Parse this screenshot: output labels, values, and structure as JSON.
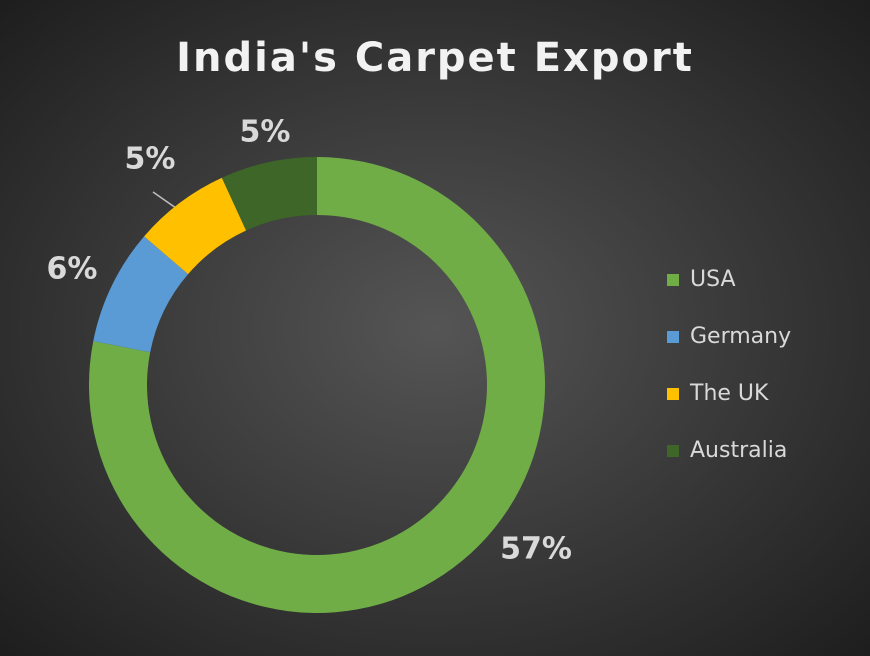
{
  "chart_data": {
    "type": "donut",
    "title": "India's Carpet Export",
    "categories": [
      "USA",
      "Germany",
      "The UK",
      "Australia"
    ],
    "values": [
      57,
      6,
      5,
      5
    ],
    "value_labels": [
      "57%",
      "6%",
      "5%",
      "5%"
    ],
    "colors": [
      "#70ad47",
      "#5b9bd5",
      "#ffc000",
      "#3e6628"
    ],
    "legend": "right"
  }
}
